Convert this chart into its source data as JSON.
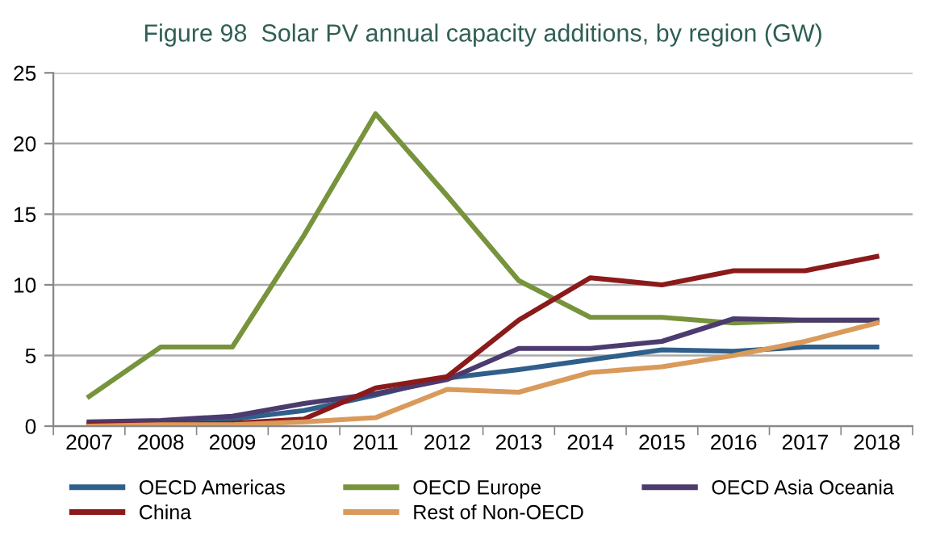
{
  "chart_data": {
    "type": "line",
    "title": "Figure 98  Solar PV annual capacity additions, by region (GW)",
    "categories": [
      "2007",
      "2008",
      "2009",
      "2010",
      "2011",
      "2012",
      "2013",
      "2014",
      "2015",
      "2016",
      "2017",
      "2018"
    ],
    "series": [
      {
        "name": "OECD Americas",
        "color": "#2f5f8a",
        "values": [
          0.2,
          0.3,
          0.5,
          1.1,
          2.2,
          3.4,
          4.0,
          4.7,
          5.4,
          5.3,
          5.6,
          5.6
        ]
      },
      {
        "name": "OECD Europe",
        "color": "#77933c",
        "values": [
          2.1,
          5.6,
          5.6,
          13.5,
          22.1,
          16.3,
          10.3,
          7.7,
          7.7,
          7.3,
          7.5,
          7.5
        ]
      },
      {
        "name": "OECD Asia Oceania",
        "color": "#4b3b6e",
        "values": [
          0.3,
          0.4,
          0.7,
          1.6,
          2.3,
          3.3,
          5.5,
          5.5,
          6.0,
          7.6,
          7.5,
          7.5
        ]
      },
      {
        "name": "China",
        "color": "#8b1a1a",
        "values": [
          0.1,
          0.1,
          0.2,
          0.5,
          2.7,
          3.5,
          7.5,
          10.5,
          10.0,
          11.0,
          11.0,
          12.0
        ]
      },
      {
        "name": "Rest of Non-OECD",
        "color": "#d99a5b",
        "values": [
          0,
          0.1,
          0.1,
          0.3,
          0.6,
          2.6,
          2.4,
          3.8,
          4.2,
          5.0,
          6.0,
          7.3
        ]
      }
    ],
    "ylim": [
      0,
      25
    ],
    "yticks": [
      0,
      5,
      10,
      15,
      20,
      25
    ],
    "grid": "y",
    "legend": "bottom",
    "marker": "none",
    "line_style": "solid"
  }
}
